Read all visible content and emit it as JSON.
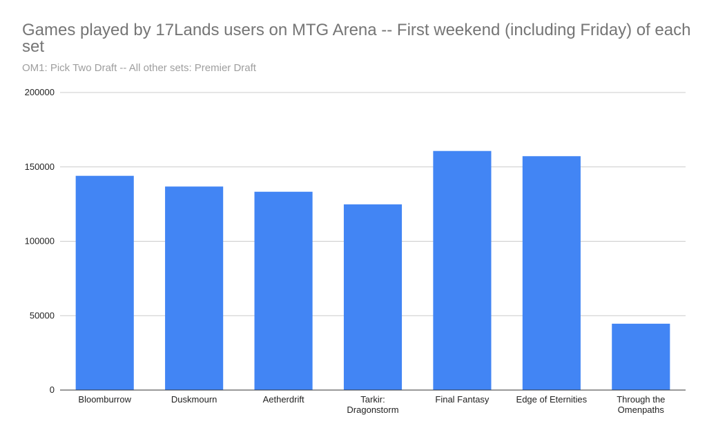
{
  "chart_data": {
    "type": "bar",
    "title": "Games played by 17Lands users on MTG Arena -- First weekend (including Friday) of each set",
    "subtitle": "OM1: Pick Two Draft -- All other sets: Premier Draft",
    "categories": [
      "Bloomburrow",
      "Duskmourn",
      "Aetherdrift",
      "Tarkir: Dragonstorm",
      "Final Fantasy",
      "Edge of Eternities",
      "Through the Omenpaths"
    ],
    "category_lines": [
      [
        "Bloomburrow"
      ],
      [
        "Duskmourn"
      ],
      [
        "Aetherdrift"
      ],
      [
        "Tarkir:",
        "Dragonstorm"
      ],
      [
        "Final Fantasy"
      ],
      [
        "Edge of Eternities"
      ],
      [
        "Through the",
        "Omenpaths"
      ]
    ],
    "values": [
      144000,
      136800,
      133300,
      124800,
      160700,
      157200,
      44600
    ],
    "ylim": [
      0,
      200000
    ],
    "yticks": [
      0,
      50000,
      100000,
      150000,
      200000
    ],
    "ytick_labels": [
      "0",
      "50000",
      "100000",
      "150000",
      "200000"
    ],
    "grid": true,
    "xlabel": "",
    "ylabel": "",
    "colors": {
      "bar": "#4285f4",
      "grid": "#cccccc",
      "axis": "#333333"
    }
  }
}
